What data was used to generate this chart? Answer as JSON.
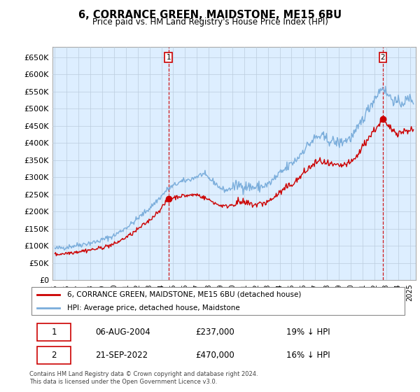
{
  "title": "6, CORRANCE GREEN, MAIDSTONE, ME15 6BU",
  "subtitle": "Price paid vs. HM Land Registry's House Price Index (HPI)",
  "ylim": [
    0,
    680000
  ],
  "yticks": [
    0,
    50000,
    100000,
    150000,
    200000,
    250000,
    300000,
    350000,
    400000,
    450000,
    500000,
    550000,
    600000,
    650000
  ],
  "xlim_start": 1994.8,
  "xlim_end": 2025.5,
  "hpi_color": "#7aaddb",
  "sale_color": "#cc0000",
  "annotation_color": "#cc0000",
  "plot_bg_color": "#ddeeff",
  "marker1_x": 2004.6,
  "marker1_y": 237000,
  "marker1_label": "1",
  "marker2_x": 2022.72,
  "marker2_y": 470000,
  "marker2_label": "2",
  "legend_line1": "6, CORRANCE GREEN, MAIDSTONE, ME15 6BU (detached house)",
  "legend_line2": "HPI: Average price, detached house, Maidstone",
  "table_data": [
    [
      "1",
      "06-AUG-2004",
      "£237,000",
      "19% ↓ HPI"
    ],
    [
      "2",
      "21-SEP-2022",
      "£470,000",
      "16% ↓ HPI"
    ]
  ],
  "footnote": "Contains HM Land Registry data © Crown copyright and database right 2024.\nThis data is licensed under the Open Government Licence v3.0.",
  "background_color": "#ffffff",
  "grid_color": "#bbccdd"
}
